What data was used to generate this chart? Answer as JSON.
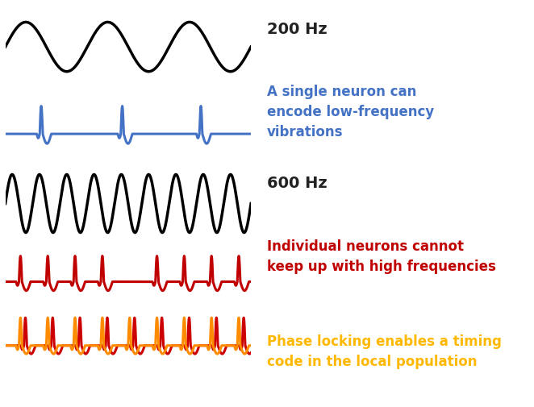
{
  "background_color": "#ffffff",
  "label_200hz": "200 Hz",
  "label_600hz": "600 Hz",
  "text_blue": "A single neuron can\nencode low-frequency\nvibrations",
  "text_red": "Individual neurons cannot\nkeep up with high frequencies",
  "text_orange": "Phase locking enables a timing\ncode in the local population",
  "text_blue_color": "#4472C4",
  "text_red_color": "#C00000",
  "text_orange_color": "#FFB800",
  "label_color": "#222222",
  "sine_low_color": "#000000",
  "sine_high_color": "#000000",
  "ap_blue_color": "#4472C4",
  "ap_red_color": "#C00000",
  "ap_orange_color": "#FF8C00",
  "ap_red2_color": "#CC0000",
  "label_fontsize": 14,
  "text_fontsize": 12,
  "lw_sine": 2.5,
  "lw_ap": 2.2,
  "fig_width": 6.62,
  "fig_height": 5.05
}
